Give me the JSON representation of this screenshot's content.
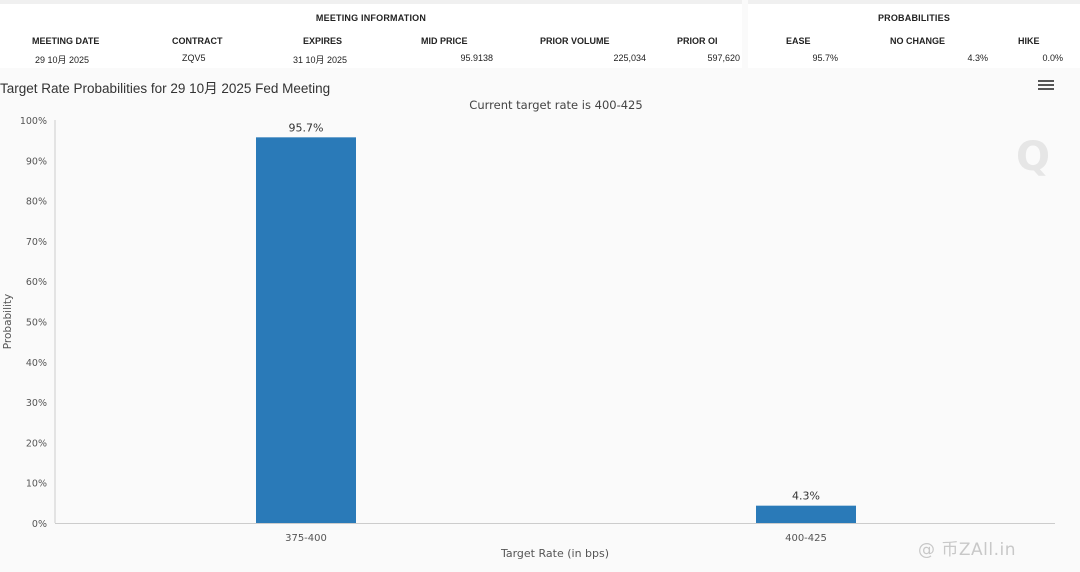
{
  "meeting_info": {
    "title": "MEETING INFORMATION",
    "headers": [
      "MEETING DATE",
      "CONTRACT",
      "EXPIRES",
      "MID PRICE",
      "PRIOR VOLUME",
      "PRIOR OI"
    ],
    "values": [
      "29 10月 2025",
      "ZQV5",
      "31 10月 2025",
      "95.9138",
      "225,034",
      "597,620"
    ]
  },
  "probabilities": {
    "title": "PROBABILITIES",
    "headers": [
      "EASE",
      "NO CHANGE",
      "HIKE"
    ],
    "values": [
      "95.7%",
      "4.3%",
      "0.0%"
    ]
  },
  "chart_data": {
    "type": "bar",
    "title": "Target Rate Probabilities for 29 10月 2025 Fed Meeting",
    "subtitle": "Current target rate is 400-425",
    "xlabel": "Target Rate (in bps)",
    "ylabel": "Probability",
    "categories": [
      "375-400",
      "400-425"
    ],
    "values": [
      95.7,
      4.3
    ],
    "data_labels": [
      "95.7%",
      "4.3%"
    ],
    "ylim": [
      0,
      100
    ],
    "yticks": [
      0,
      10,
      20,
      30,
      40,
      50,
      60,
      70,
      80,
      90,
      100
    ],
    "ytick_labels": [
      "0%",
      "10%",
      "20%",
      "30%",
      "40%",
      "50%",
      "60%",
      "70%",
      "80%",
      "90%",
      "100%"
    ],
    "bar_color": "#2a7ab8",
    "grid": false,
    "legend": "none"
  },
  "colors": {
    "bar": "#2a7ab8",
    "axis": "#cccccc"
  },
  "menu_icon": "hamburger-menu-icon",
  "watermark_text": "@ 币ZAll.in",
  "watermark_logo": "Q"
}
